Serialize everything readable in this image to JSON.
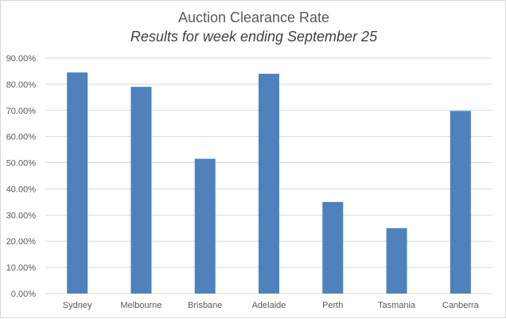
{
  "chart_data": {
    "type": "bar",
    "title": "Auction Clearance Rate",
    "subtitle": "Results for week ending September 25",
    "categories": [
      "Sydney",
      "Melbourne",
      "Brisbane",
      "Adelaide",
      "Perth",
      "Tasmania",
      "Canberra"
    ],
    "values": [
      84.5,
      79.0,
      51.5,
      84.0,
      35.0,
      25.0,
      69.8
    ],
    "ylim": [
      0,
      90
    ],
    "yticks": [
      "0.00%",
      "10.00%",
      "20.00%",
      "30.00%",
      "40.00%",
      "50.00%",
      "60.00%",
      "70.00%",
      "80.00%",
      "90.00%"
    ],
    "grid": true,
    "legend": "none",
    "bar_color": "#4f81bd",
    "grid_color": "#d9d9d9"
  }
}
